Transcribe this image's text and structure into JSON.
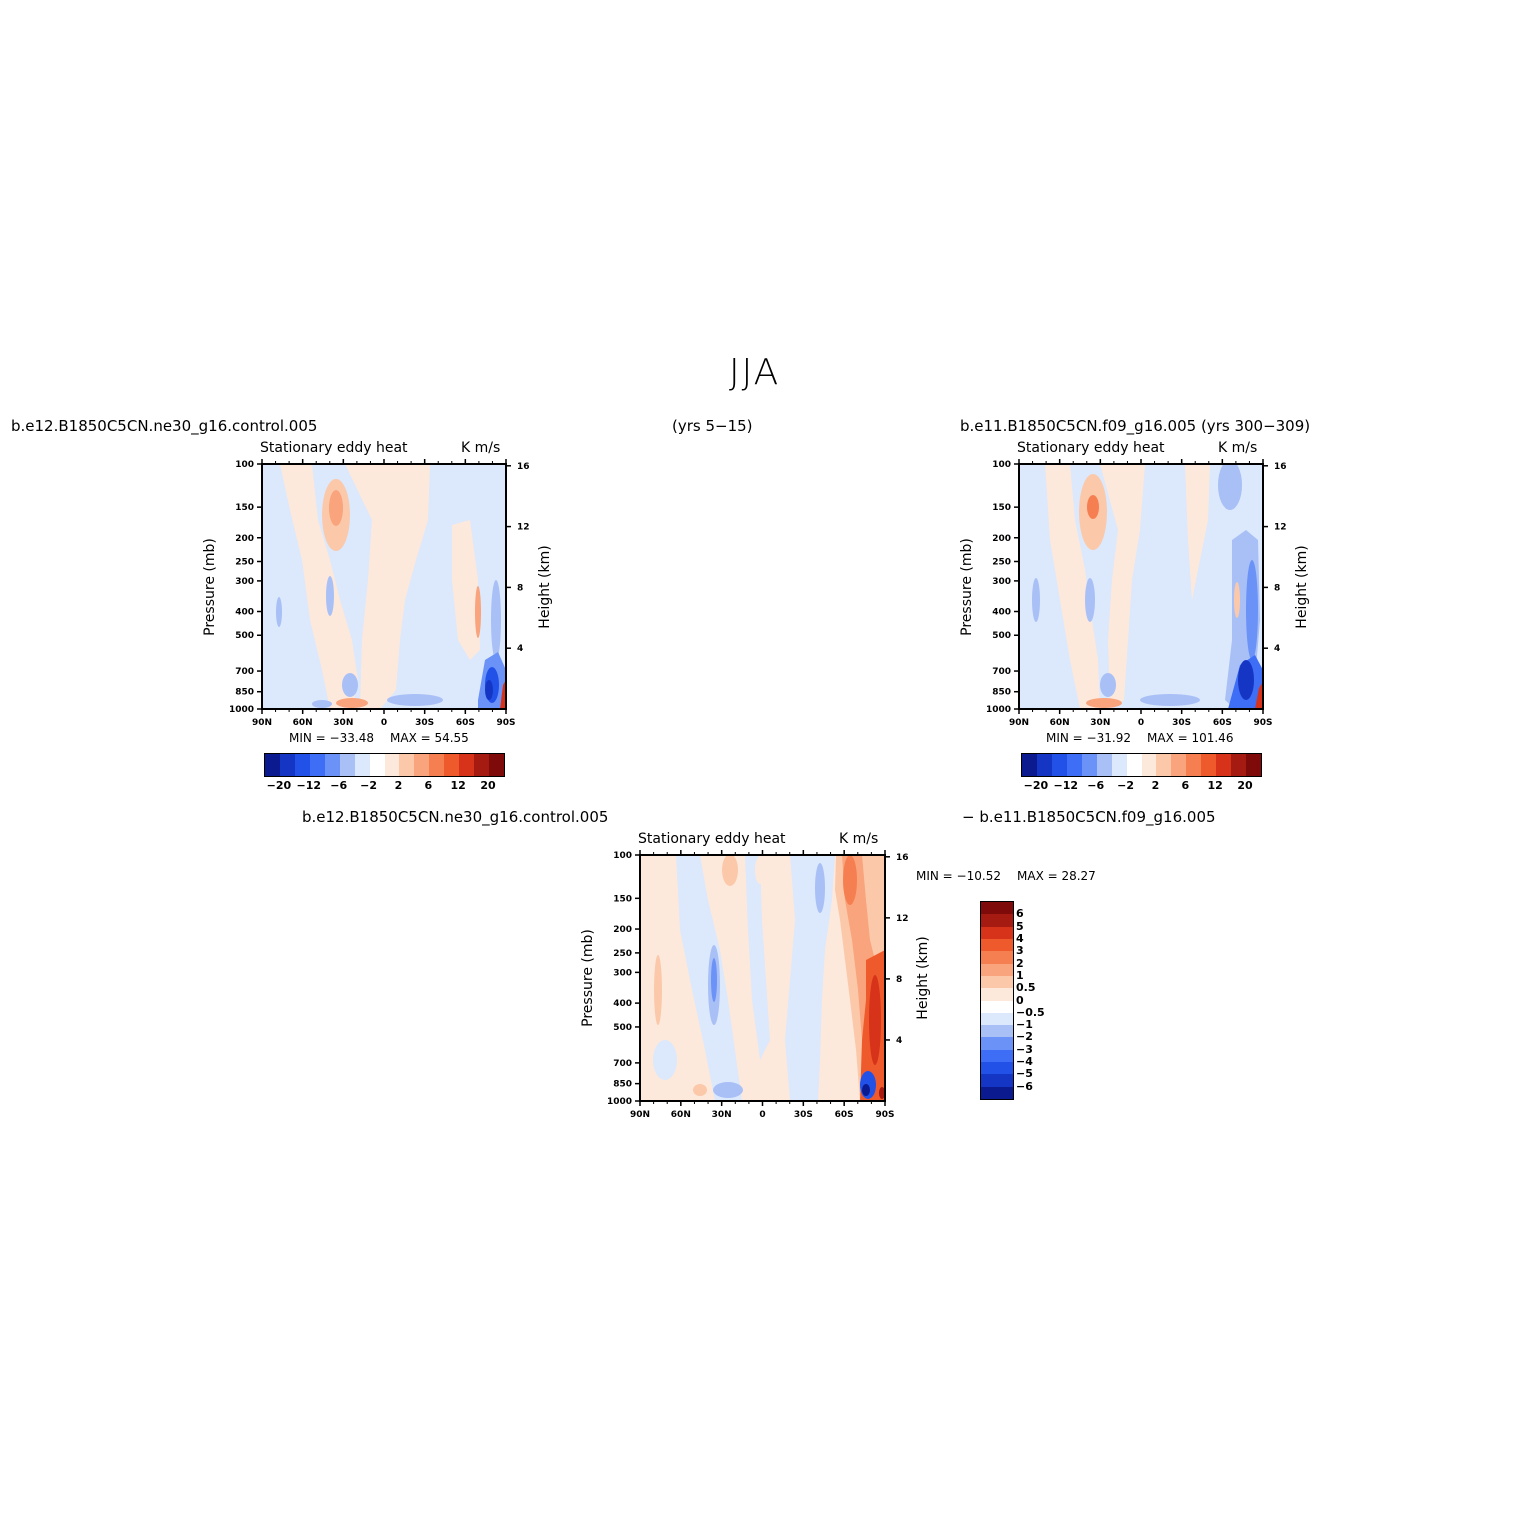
{
  "figure": {
    "title": "JJA",
    "left_case": "b.e12.B1850C5CN.ne30_g16.control.005",
    "center_note": "(yrs 5−15)",
    "right_case": "b.e11.B1850C5CN.f09_g16.005 (yrs 300−309)",
    "diff_case_a": "b.e12.B1850C5CN.ne30_g16.control.005",
    "diff_case_b": "− b.e11.B1850C5CN.f09_g16.005"
  },
  "colors": {
    "blue_6": "#0b1a8f",
    "blue_5": "#1536c4",
    "blue_4": "#2251e8",
    "blue_3": "#3d6ef5",
    "blue_2": "#6b92f7",
    "blue_1": "#a9c0f7",
    "blue_0": "#dce8fb",
    "red_0": "#fde9dc",
    "red_1": "#fbc9aa",
    "red_2": "#f9a47c",
    "red_3": "#f67f52",
    "red_4": "#ef5a2c",
    "red_5": "#d6331a",
    "red_6": "#a51a11",
    "red_7": "#7e0a0a"
  },
  "chart_data": [
    {
      "type": "heatmap",
      "title": "Stationary eddy heat",
      "units": "K m/s",
      "xlabel": "",
      "ylabel": "Pressure (mb)",
      "y2label": "Height (km)",
      "x_ticks": [
        "90N",
        "60N",
        "30N",
        "0",
        "30S",
        "60S",
        "90S"
      ],
      "y_ticks": [
        "100",
        "150",
        "200",
        "250",
        "300",
        "400",
        "500",
        "700",
        "850",
        "1000"
      ],
      "y2_ticks": [
        "16",
        "12",
        "8",
        "4"
      ],
      "ylim": [
        1000,
        100
      ],
      "y_scale": "log",
      "min_label": "MIN = −33.48",
      "max_label": "MAX = 54.55",
      "colorbar": {
        "orientation": "horizontal",
        "levels": [
          -20,
          -16,
          -12,
          -8,
          -6,
          -4,
          -2,
          0,
          2,
          4,
          6,
          8,
          12,
          16,
          20
        ],
        "labels": [
          "−20",
          "−12",
          "−6",
          "−2",
          "2",
          "6",
          "12",
          "20"
        ]
      }
    },
    {
      "type": "heatmap",
      "title": "Stationary eddy heat",
      "units": "K m/s",
      "xlabel": "",
      "ylabel": "Pressure (mb)",
      "y2label": "Height (km)",
      "x_ticks": [
        "90N",
        "60N",
        "30N",
        "0",
        "30S",
        "60S",
        "90S"
      ],
      "y_ticks": [
        "100",
        "150",
        "200",
        "250",
        "300",
        "400",
        "500",
        "700",
        "850",
        "1000"
      ],
      "y2_ticks": [
        "16",
        "12",
        "8",
        "4"
      ],
      "ylim": [
        1000,
        100
      ],
      "y_scale": "log",
      "min_label": "MIN = −31.92",
      "max_label": "MAX = 101.46",
      "colorbar": {
        "orientation": "horizontal",
        "levels": [
          -20,
          -16,
          -12,
          -8,
          -6,
          -4,
          -2,
          0,
          2,
          4,
          6,
          8,
          12,
          16,
          20
        ],
        "labels": [
          "−20",
          "−12",
          "−6",
          "−2",
          "2",
          "6",
          "12",
          "20"
        ]
      }
    },
    {
      "type": "heatmap",
      "title": "Stationary eddy heat",
      "units": "K m/s",
      "xlabel": "",
      "ylabel": "Pressure (mb)",
      "y2label": "Height (km)",
      "x_ticks": [
        "90N",
        "60N",
        "30N",
        "0",
        "30S",
        "60S",
        "90S"
      ],
      "y_ticks": [
        "100",
        "150",
        "200",
        "250",
        "300",
        "400",
        "500",
        "700",
        "850",
        "1000"
      ],
      "y2_ticks": [
        "16",
        "12",
        "8",
        "4"
      ],
      "ylim": [
        1000,
        100
      ],
      "y_scale": "log",
      "min_label": "MIN = −10.52",
      "max_label": "MAX = 28.27",
      "colorbar": {
        "orientation": "vertical",
        "levels": [
          -6,
          -5,
          -4,
          -3,
          -2,
          -1,
          -0.5,
          0,
          0.5,
          1,
          2,
          3,
          4,
          5,
          6
        ],
        "labels": [
          "6",
          "5",
          "4",
          "3",
          "2",
          "1",
          "0.5",
          "0",
          "−0.5",
          "−1",
          "−2",
          "−3",
          "−4",
          "−5",
          "−6"
        ]
      }
    }
  ]
}
